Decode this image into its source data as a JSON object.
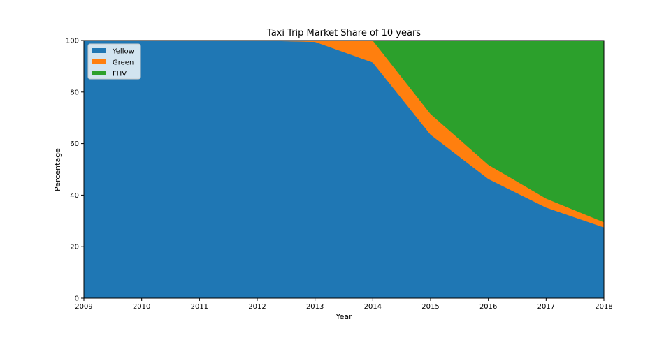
{
  "chart_data": {
    "type": "area",
    "stacked": true,
    "title": "Taxi Trip Market Share of 10 years",
    "xlabel": "Year",
    "ylabel": "Percentage",
    "x": [
      2009,
      2010,
      2011,
      2012,
      2013,
      2014,
      2015,
      2016,
      2017,
      2018
    ],
    "xlim": [
      2009,
      2018
    ],
    "ylim": [
      0,
      100
    ],
    "yticks": [
      0,
      20,
      40,
      60,
      80,
      100
    ],
    "grid": false,
    "legend_position": "top-left",
    "series": [
      {
        "name": "Yellow",
        "color": "#1f77b4",
        "values": [
          100,
          100,
          100,
          100,
          99.5,
          91.5,
          63.5,
          46.3,
          35.2,
          27.5
        ]
      },
      {
        "name": "Green",
        "color": "#ff7f0e",
        "values": [
          0,
          0,
          0,
          0,
          0.5,
          8.5,
          8.0,
          5.5,
          3.5,
          2.0
        ]
      },
      {
        "name": "FHV",
        "color": "#2ca02c",
        "values": [
          0,
          0,
          0,
          0,
          0,
          0,
          28.5,
          48.2,
          61.3,
          70.5
        ]
      }
    ]
  }
}
